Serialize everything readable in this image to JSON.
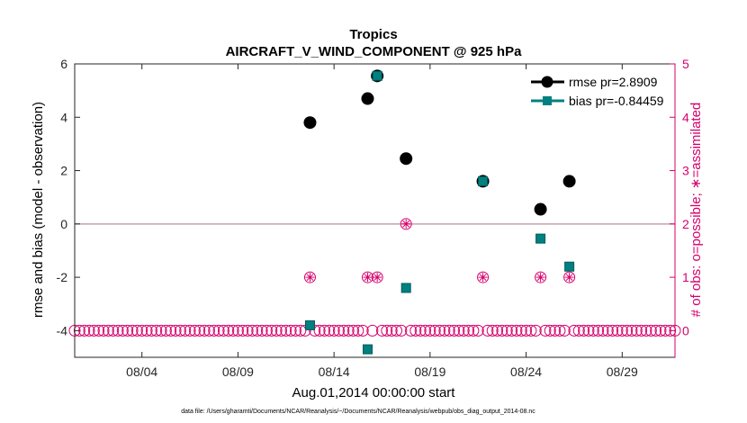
{
  "chart_data": {
    "type": "scatter",
    "title": "Tropics",
    "subtitle": "AIRCRAFT_V_WIND_COMPONENT @ 925 hPa",
    "xlabel": "Aug.01,2014 00:00:00 start",
    "ylabel": "rmse and bias (model - observation)",
    "y2label": "# of obs: o=possible; ∗=assimilated",
    "footnote": "data file: /Users/gharamti/Documents/NCAR/Reanalysis/~/Documents/NCAR/Reanalysis/webpub/obs_diag_output_2014-08.nc",
    "xlim": [
      0.5,
      31.75
    ],
    "ylim": [
      -5,
      6
    ],
    "y2lim": [
      -0.5,
      5
    ],
    "x_ticks": [
      {
        "value": 4,
        "label": "08/04"
      },
      {
        "value": 9,
        "label": "08/09"
      },
      {
        "value": 14,
        "label": "08/14"
      },
      {
        "value": 19,
        "label": "08/19"
      },
      {
        "value": 24,
        "label": "08/24"
      },
      {
        "value": 29,
        "label": "08/29"
      }
    ],
    "y_ticks": [
      {
        "value": 6,
        "label": "6"
      },
      {
        "value": 4,
        "label": "4"
      },
      {
        "value": 2,
        "label": "2"
      },
      {
        "value": 0,
        "label": "0"
      },
      {
        "value": -2,
        "label": "-2"
      },
      {
        "value": -4,
        "label": "-4"
      }
    ],
    "y2_ticks": [
      {
        "value": 5,
        "label": "5"
      },
      {
        "value": 4,
        "label": "4"
      },
      {
        "value": 3,
        "label": "3"
      },
      {
        "value": 2,
        "label": "2"
      },
      {
        "value": 1,
        "label": "1"
      },
      {
        "value": 0,
        "label": "0"
      }
    ],
    "zero_line": 0,
    "series": [
      {
        "name": "rmse",
        "legend": "rmse pr=2.8909",
        "color": "#000000",
        "marker": "circle",
        "x": [
          12.75,
          15.75,
          16.25,
          17.75,
          21.75,
          24.75,
          26.25
        ],
        "y": [
          3.8,
          4.7,
          5.55,
          2.45,
          1.6,
          0.55,
          1.6
        ]
      },
      {
        "name": "bias",
        "legend": "bias pr=-0.84459",
        "color": "#008080",
        "marker": "square",
        "x": [
          12.75,
          15.75,
          16.25,
          17.75,
          21.75,
          24.75,
          26.25
        ],
        "y": [
          -3.8,
          -4.7,
          5.55,
          -2.4,
          1.6,
          -0.55,
          -1.6
        ]
      }
    ],
    "obs_color": "#d6006c",
    "obs": {
      "x_start": 0.5,
      "x_end": 31.75,
      "step": 0.25,
      "possible_default": 0,
      "assimilated_default": 0,
      "overrides": [
        {
          "x": 12.75,
          "possible": 1,
          "assimilated": 1
        },
        {
          "x": 15.75,
          "possible": 1,
          "assimilated": 1
        },
        {
          "x": 16.25,
          "possible": 1,
          "assimilated": 1
        },
        {
          "x": 17.75,
          "possible": 2,
          "assimilated": 2
        },
        {
          "x": 21.75,
          "possible": 1,
          "assimilated": 1
        },
        {
          "x": 24.75,
          "possible": 1,
          "assimilated": 1
        },
        {
          "x": 26.25,
          "possible": 1,
          "assimilated": 1
        }
      ]
    }
  }
}
